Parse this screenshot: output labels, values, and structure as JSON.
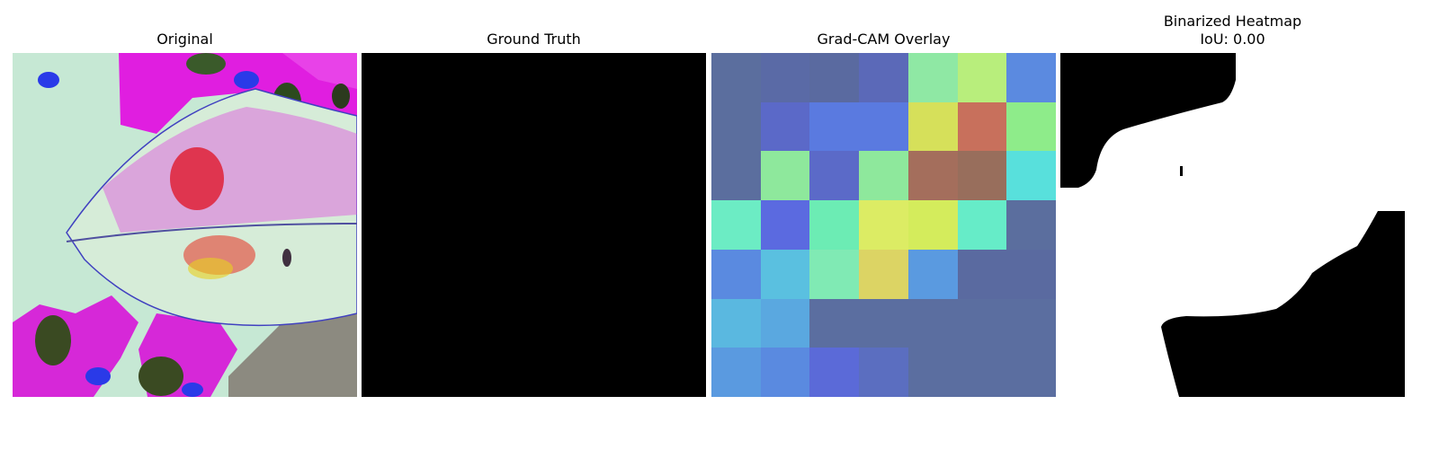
{
  "panels": {
    "original": {
      "title": "Original"
    },
    "ground_truth": {
      "title": "Ground Truth"
    },
    "gradcam": {
      "title": "Grad-CAM Overlay",
      "cell_colors": [
        [
          "#5b6e9e",
          "#5a6aa6",
          "#5a6aa0",
          "#5b69b8",
          "#8fe8a4",
          "#b8ee7c",
          "#5b8ae0"
        ],
        [
          "#5b6e9e",
          "#5b69c8",
          "#5a7ae0",
          "#5a7ae0",
          "#d6e05a",
          "#c8705c",
          "#8eec8a"
        ],
        [
          "#5b6e9e",
          "#8ee89c",
          "#5b6ac8",
          "#8ee89c",
          "#a46e5c",
          "#986e5c",
          "#58e0dc"
        ],
        [
          "#6cecc4",
          "#5b6ae0",
          "#6cecb4",
          "#dcec64",
          "#d4ec5c",
          "#66ecc8",
          "#5b6e9e"
        ],
        [
          "#5a8ae0",
          "#5ac0e0",
          "#80eab4",
          "#dcd464",
          "#5a9ae0",
          "#5a6aa0",
          "#5a6aa0"
        ],
        [
          "#5ab8e0",
          "#5aa8e0",
          "#5b6ea0",
          "#5b6ea0",
          "#5b6ea0",
          "#5b6ea0",
          "#5b6ea0"
        ],
        [
          "#5a9ae0",
          "#5a8ae0",
          "#5b6ad8",
          "#5b6ec0",
          "#5b6ea0",
          "#5b6ea0",
          "#5b6ea0"
        ]
      ]
    },
    "binarized": {
      "title": "Binarized Heatmap\nIoU: 0.00"
    }
  }
}
